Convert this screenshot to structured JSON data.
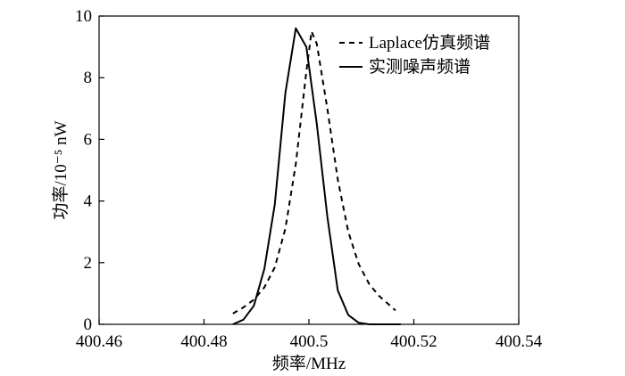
{
  "chart_data": {
    "type": "line",
    "xlabel": "频率/MHz",
    "ylabel": "功率/10⁻⁵ nW",
    "xlim": [
      400.46,
      400.54
    ],
    "ylim": [
      0,
      10
    ],
    "xticks": [
      "400.46",
      "400.48",
      "400.5",
      "400.52",
      "400.54"
    ],
    "yticks": [
      "0",
      "2",
      "4",
      "6",
      "8",
      "10"
    ],
    "legend_position": "top-right",
    "series": [
      {
        "name": "Laplace仿真频谱",
        "style": "dashed",
        "x": [
          400.4855,
          400.4875,
          400.4895,
          400.4915,
          400.4935,
          400.4955,
          400.4975,
          400.4995,
          400.5005,
          400.5015,
          400.5035,
          400.5055,
          400.5075,
          400.5095,
          400.5115,
          400.5135,
          400.5155,
          400.5165
        ],
        "y": [
          0.35,
          0.55,
          0.8,
          1.2,
          1.85,
          3.1,
          5.2,
          8.2,
          9.5,
          9.1,
          7.0,
          4.7,
          3.0,
          1.95,
          1.3,
          0.9,
          0.6,
          0.45
        ]
      },
      {
        "name": "实测噪声频谱",
        "style": "solid",
        "x": [
          400.4855,
          400.4875,
          400.4895,
          400.4915,
          400.4935,
          400.4955,
          400.4975,
          400.4995,
          400.5015,
          400.5035,
          400.5055,
          400.5075,
          400.5095,
          400.5115,
          400.5135,
          400.5155,
          400.5175
        ],
        "y": [
          0.0,
          0.15,
          0.6,
          1.8,
          3.9,
          7.5,
          9.6,
          9.0,
          6.5,
          3.5,
          1.1,
          0.3,
          0.05,
          0.0,
          0.0,
          0.0,
          0.0
        ]
      }
    ]
  }
}
